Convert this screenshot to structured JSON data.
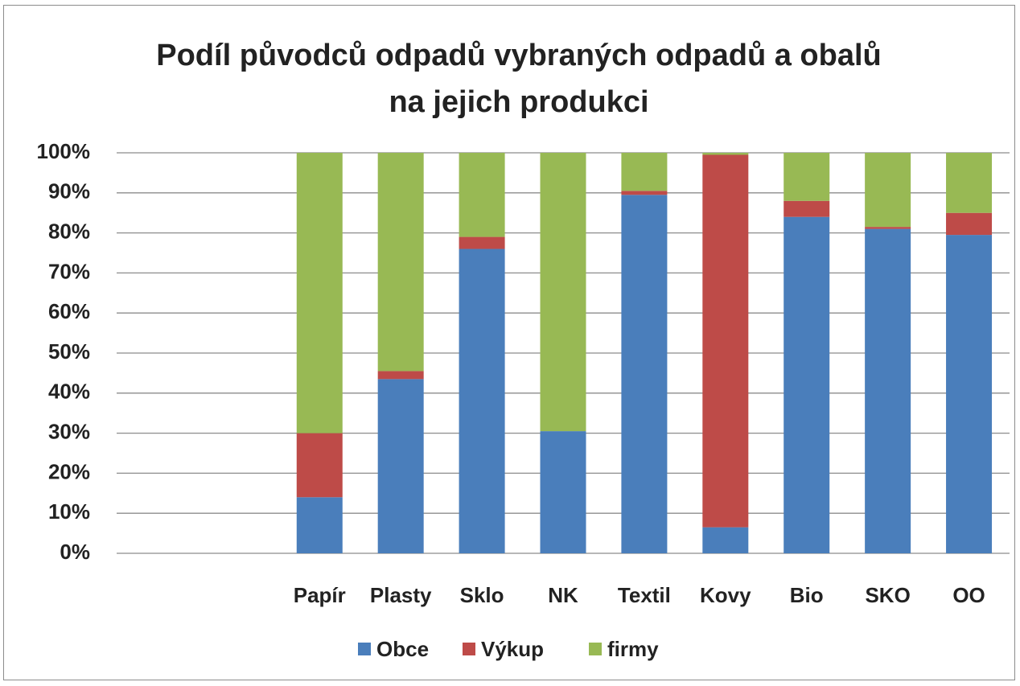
{
  "chart_data": {
    "type": "stacked_bar",
    "title": "Podíl původců odpadů vybraných odpadů a obalů na jejich produkci",
    "categories": [
      null,
      null,
      "Papír",
      "Plasty",
      "Sklo",
      "NK",
      "Textil",
      "Kovy",
      "Bio",
      "SKO",
      "OO"
    ],
    "series": [
      {
        "name": "Obce",
        "color": "#4a7ebb",
        "values": [
          null,
          null,
          14,
          43.5,
          76,
          30.5,
          89.5,
          6.5,
          84,
          81,
          79.5
        ]
      },
      {
        "name": "Výkup",
        "color": "#be4b48",
        "values": [
          null,
          null,
          16,
          2,
          3,
          0,
          1,
          93,
          4,
          0.5,
          5.5
        ]
      },
      {
        "name": "firmy",
        "color": "#98b954",
        "values": [
          null,
          null,
          70,
          54.5,
          21,
          69.5,
          9.5,
          0.5,
          12,
          18.5,
          15
        ]
      }
    ],
    "ylim": [
      0,
      100
    ],
    "yticks": [
      {
        "value": 0,
        "label": "0%"
      },
      {
        "value": 10,
        "label": "10%"
      },
      {
        "value": 20,
        "label": "20%"
      },
      {
        "value": 30,
        "label": "30%"
      },
      {
        "value": 40,
        "label": "40%"
      },
      {
        "value": 50,
        "label": "50%"
      },
      {
        "value": 60,
        "label": "60%"
      },
      {
        "value": 70,
        "label": "70%"
      },
      {
        "value": 80,
        "label": "80%"
      },
      {
        "value": 90,
        "label": "90%"
      },
      {
        "value": 100,
        "label": "100%"
      }
    ],
    "grid": true,
    "legend": "bottom"
  }
}
